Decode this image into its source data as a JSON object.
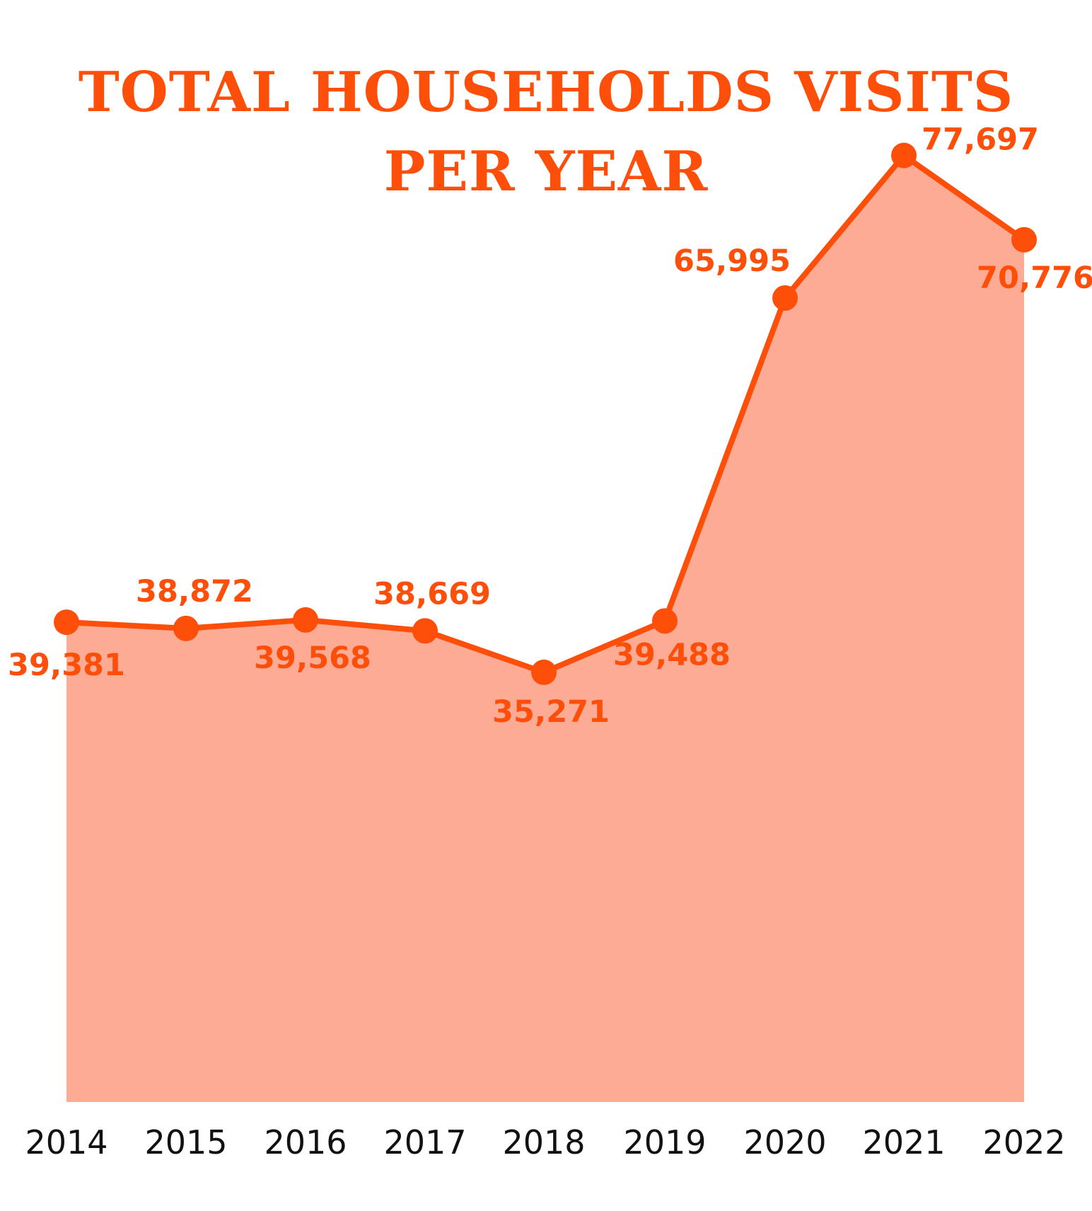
{
  "colors": {
    "accent": "#fe4f0a",
    "area_fill": "#fdab94",
    "tick_text": "#111111",
    "background": "#ffffff"
  },
  "title": {
    "line1": "TOTAL HOUSEHOLDS VISITS",
    "line2": "PER YEAR"
  },
  "chart_data": {
    "type": "area",
    "title": "TOTAL HOUSEHOLDS VISITS PER YEAR",
    "xlabel": "",
    "ylabel": "",
    "categories": [
      "2014",
      "2015",
      "2016",
      "2017",
      "2018",
      "2019",
      "2020",
      "2021",
      "2022"
    ],
    "values": [
      39381,
      38872,
      39568,
      38669,
      35271,
      39488,
      65995,
      77697,
      70776
    ],
    "data_labels": [
      "39,381",
      "38,872",
      "39,568",
      "38,669",
      "35,271",
      "39,488",
      "65,995",
      "77,697",
      "70,776"
    ],
    "data_label_position": [
      "below",
      "above",
      "below",
      "above",
      "below",
      "below",
      "above",
      "above",
      "below"
    ],
    "ylim": [
      0,
      80000
    ],
    "grid": false,
    "legend": "none",
    "markers": true
  }
}
